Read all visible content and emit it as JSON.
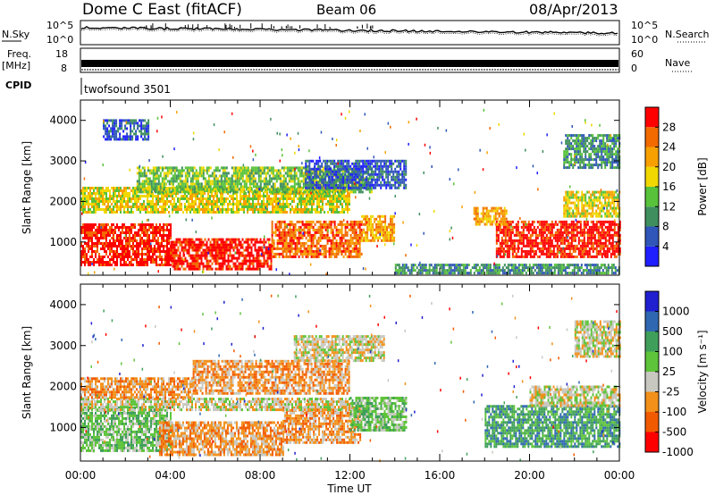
{
  "header": {
    "station": "Dome C East (fitACF)",
    "beam": "Beam 06",
    "date": "08/Apr/2013"
  },
  "side_labels": {
    "nsky": "N.Sky",
    "nsearch": "N.Search",
    "freq_top": "Freq.",
    "freq_unit": "[MHz]",
    "nave": "Nave",
    "cpid": "CPID",
    "cpid_value": "twofsound 3501"
  },
  "noise_axis": {
    "left_top": "10^5",
    "left_bottom": "10^0",
    "right_top": "10^5",
    "right_bottom": "10^0"
  },
  "freq_axis": {
    "left_top": "18",
    "left_bottom": "8",
    "right_top": "60",
    "right_bottom": "0"
  },
  "time_axis": {
    "label": "Time UT",
    "ticks": [
      "00:00",
      "04:00",
      "08:00",
      "12:00",
      "16:00",
      "20:00",
      "00:00"
    ]
  },
  "colors": {
    "power": [
      "#1f1fff",
      "#2f56b8",
      "#3f8f5e",
      "#57c23a",
      "#f0d800",
      "#f7a000",
      "#f26a00",
      "#ff0000"
    ],
    "velocity": [
      "#ff0000",
      "#f25a00",
      "#f2901a",
      "#c8c8c0",
      "#5ec43a",
      "#3f9f5a",
      "#2f68b0",
      "#2020d0"
    ]
  },
  "chart_data": [
    {
      "type": "heatmap",
      "name": "power",
      "ylabel": "Slant Range [km]",
      "yticks": [
        1000,
        2000,
        3000,
        4000
      ],
      "ylim": [
        180,
        4500
      ],
      "xlim": [
        0,
        24
      ],
      "colorbar": {
        "label": "Power [dB]",
        "ticks": [
          "4",
          "8",
          "12",
          "16",
          "20",
          "24",
          "28"
        ],
        "range": [
          0,
          32
        ]
      },
      "regions": [
        {
          "t0": 0.0,
          "t1": 4.0,
          "r0": 400,
          "r1": 1450,
          "level": 7
        },
        {
          "t0": 4.0,
          "t1": 8.5,
          "r0": 300,
          "r1": 1050,
          "level": 7
        },
        {
          "t0": 8.5,
          "t1": 12.5,
          "r0": 600,
          "r1": 1500,
          "level": 6
        },
        {
          "t0": 12.5,
          "t1": 14.0,
          "r0": 1000,
          "r1": 1600,
          "level": 5
        },
        {
          "t0": 0.0,
          "t1": 12.0,
          "r0": 1700,
          "r1": 2300,
          "level": 4
        },
        {
          "t0": 2.5,
          "t1": 13.0,
          "r0": 2200,
          "r1": 2800,
          "level": 3
        },
        {
          "t0": 10.0,
          "t1": 14.5,
          "r0": 2300,
          "r1": 3000,
          "level": 1
        },
        {
          "t0": 18.5,
          "t1": 24.0,
          "r0": 600,
          "r1": 1500,
          "level": 7
        },
        {
          "t0": 17.5,
          "t1": 19.0,
          "r0": 1400,
          "r1": 1800,
          "level": 5
        },
        {
          "t0": 21.5,
          "t1": 24.0,
          "r0": 1600,
          "r1": 2200,
          "level": 4
        },
        {
          "t0": 21.5,
          "t1": 24.0,
          "r0": 2800,
          "r1": 3600,
          "level": 2
        },
        {
          "t0": 1.0,
          "t1": 3.0,
          "r0": 3500,
          "r1": 4000,
          "level": 1
        },
        {
          "t0": 14.0,
          "t1": 24.0,
          "r0": 200,
          "r1": 400,
          "level": 2
        }
      ]
    },
    {
      "type": "heatmap",
      "name": "velocity",
      "ylabel": "Slant Range [km]",
      "yticks": [
        1000,
        2000,
        3000,
        4000
      ],
      "ylim": [
        180,
        4500
      ],
      "xlim": [
        0,
        24
      ],
      "colorbar": {
        "label": "Velocity [m s⁻¹]",
        "ticks": [
          "-1000",
          "-500",
          "-100",
          "-25",
          "25",
          "100",
          "500",
          "1000"
        ]
      },
      "regions": [
        {
          "t0": 0.0,
          "t1": 4.0,
          "r0": 400,
          "r1": 1450,
          "level": 4
        },
        {
          "t0": 3.5,
          "t1": 9.0,
          "r0": 300,
          "r1": 1100,
          "level": 2
        },
        {
          "t0": 9.0,
          "t1": 12.5,
          "r0": 600,
          "r1": 1500,
          "level": 2
        },
        {
          "t0": 12.0,
          "t1": 14.5,
          "r0": 900,
          "r1": 1700,
          "level": 4
        },
        {
          "t0": 0.0,
          "t1": 12.0,
          "r0": 1400,
          "r1": 1700,
          "level": 3
        },
        {
          "t0": 0.0,
          "t1": 5.0,
          "r0": 1700,
          "r1": 2200,
          "level": 2
        },
        {
          "t0": 5.0,
          "t1": 12.0,
          "r0": 1800,
          "r1": 2600,
          "level": 2
        },
        {
          "t0": 9.5,
          "t1": 13.5,
          "r0": 2600,
          "r1": 3200,
          "level": 3
        },
        {
          "t0": 18.0,
          "t1": 24.0,
          "r0": 500,
          "r1": 1500,
          "level": 5
        },
        {
          "t0": 20.0,
          "t1": 24.0,
          "r0": 1500,
          "r1": 2000,
          "level": 3
        },
        {
          "t0": 22.0,
          "t1": 24.0,
          "r0": 2700,
          "r1": 3600,
          "level": 3
        }
      ]
    }
  ]
}
